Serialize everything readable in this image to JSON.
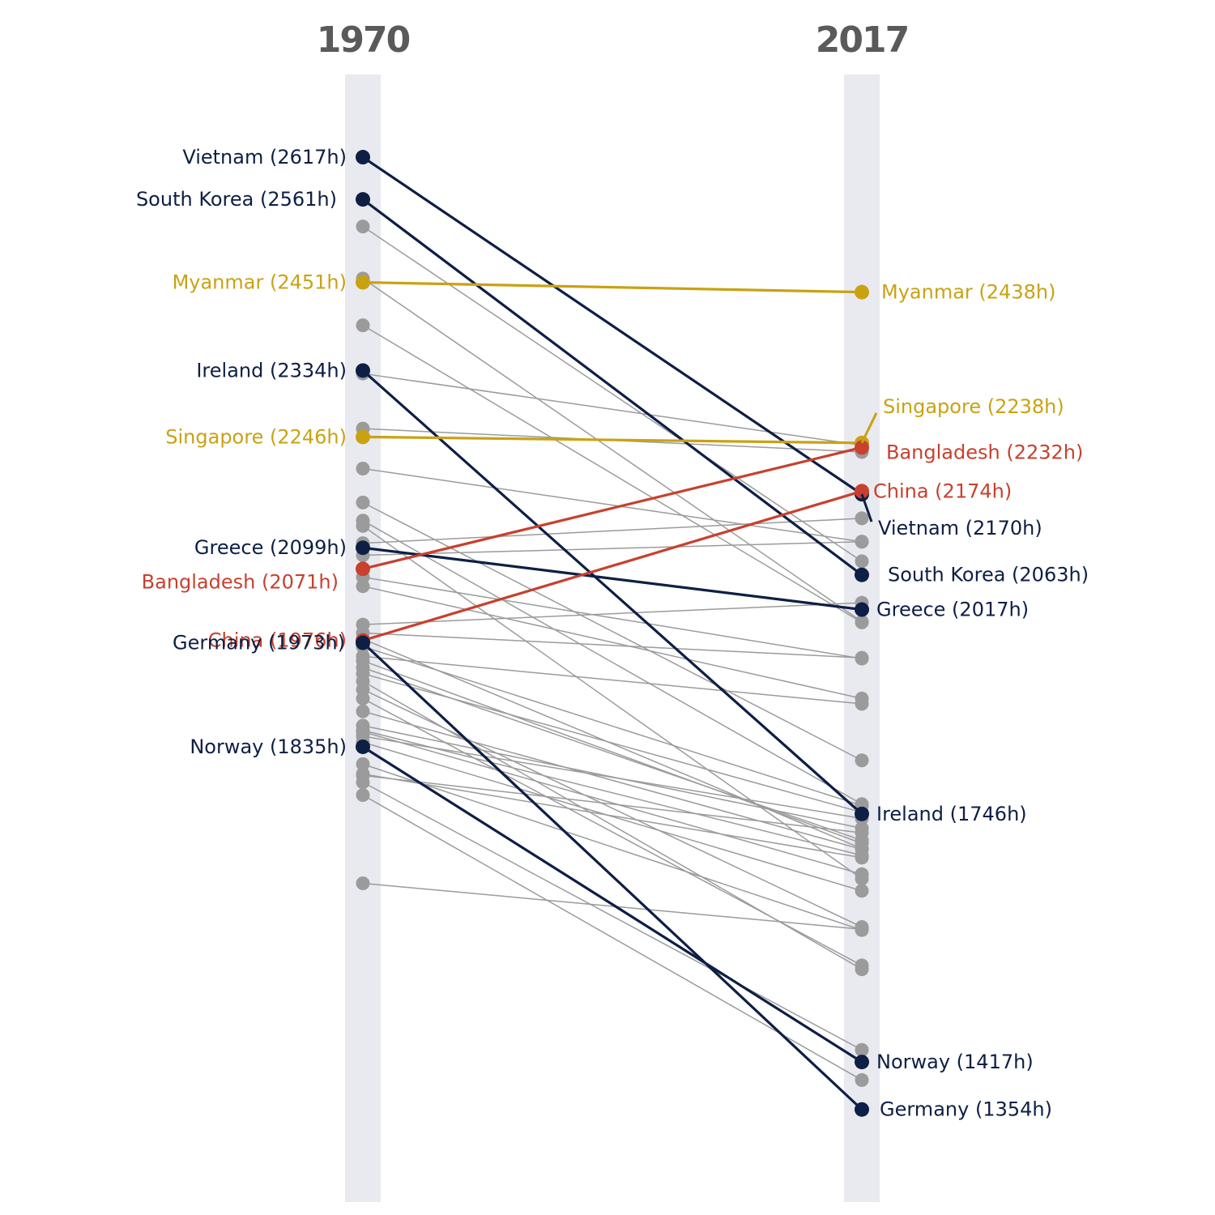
{
  "chart_data": {
    "type": "slope",
    "columns": [
      "1970",
      "2017"
    ],
    "ylim": [
      1300,
      2660
    ],
    "colors": {
      "navy": "#0d1f45",
      "gold": "#c9a214",
      "red": "#c8402e",
      "gray": "#9b9b9b",
      "band": "#e9eaf0"
    },
    "highlighted": [
      {
        "name": "Vietnam",
        "start": 2617,
        "end": 2170,
        "color": "navy",
        "start_label": "Vietnam (2617h)",
        "end_label": "Vietnam (2170h)"
      },
      {
        "name": "South Korea",
        "start": 2561,
        "end": 2063,
        "color": "navy",
        "start_label": "South Korea (2561h)",
        "end_label": "South Korea (2063h)"
      },
      {
        "name": "Myanmar",
        "start": 2451,
        "end": 2438,
        "color": "gold",
        "start_label": "Myanmar (2451h)",
        "end_label": "Myanmar (2438h)"
      },
      {
        "name": "Ireland",
        "start": 2334,
        "end": 1746,
        "color": "navy",
        "start_label": "Ireland (2334h)",
        "end_label": "Ireland (1746h)"
      },
      {
        "name": "Singapore",
        "start": 2246,
        "end": 2238,
        "color": "gold",
        "start_label": "Singapore (2246h)",
        "end_label": "Singapore (2238h)"
      },
      {
        "name": "Greece",
        "start": 2099,
        "end": 2017,
        "color": "navy",
        "start_label": "Greece (2099h)",
        "end_label": "Greece (2017h)"
      },
      {
        "name": "Bangladesh",
        "start": 2071,
        "end": 2232,
        "color": "red",
        "start_label": "Bangladesh (2071h)",
        "end_label": "Bangladesh (2232h)"
      },
      {
        "name": "China",
        "start": 1976,
        "end": 2174,
        "color": "red",
        "start_label": "China (1976h)",
        "end_label": "China (2174h)"
      },
      {
        "name": "Germany",
        "start": 1973,
        "end": 1354,
        "color": "navy",
        "start_label": "Germany (1973h)",
        "end_label": "Germany (1354h)"
      },
      {
        "name": "Norway",
        "start": 1835,
        "end": 1417,
        "color": "navy",
        "start_label": "Norway (1835h)",
        "end_label": "Norway (1417h)"
      }
    ],
    "background_series": [
      {
        "start": 2525,
        "end": 2081
      },
      {
        "start": 2456,
        "end": 2001
      },
      {
        "start": 2394,
        "end": 2000
      },
      {
        "start": 2330,
        "end": 2235
      },
      {
        "start": 2257,
        "end": 2226
      },
      {
        "start": 2204,
        "end": 2107
      },
      {
        "start": 2159,
        "end": 1817
      },
      {
        "start": 2135,
        "end": 1759
      },
      {
        "start": 2128,
        "end": 1660
      },
      {
        "start": 2105,
        "end": 2138
      },
      {
        "start": 2089,
        "end": 2107
      },
      {
        "start": 2060,
        "end": 1952
      },
      {
        "start": 2048,
        "end": 1899
      },
      {
        "start": 1997,
        "end": 2026
      },
      {
        "start": 1986,
        "end": 1953
      },
      {
        "start": 1978,
        "end": 1700
      },
      {
        "start": 1968,
        "end": 1757
      },
      {
        "start": 1955,
        "end": 1892
      },
      {
        "start": 1949,
        "end": 1707
      },
      {
        "start": 1940,
        "end": 1711
      },
      {
        "start": 1932,
        "end": 1748
      },
      {
        "start": 1922,
        "end": 1540
      },
      {
        "start": 1911,
        "end": 1596
      },
      {
        "start": 1899,
        "end": 1545
      },
      {
        "start": 1882,
        "end": 1699
      },
      {
        "start": 1863,
        "end": 1727
      },
      {
        "start": 1857,
        "end": 1691
      },
      {
        "start": 1855,
        "end": 1666
      },
      {
        "start": 1849,
        "end": 1740
      },
      {
        "start": 1841,
        "end": 1644
      },
      {
        "start": 1812,
        "end": 1592
      },
      {
        "start": 1799,
        "end": 1688
      },
      {
        "start": 1797,
        "end": 1721
      },
      {
        "start": 1788,
        "end": 1433
      },
      {
        "start": 1771,
        "end": 1393
      },
      {
        "start": 1654,
        "end": 1593
      }
    ]
  }
}
